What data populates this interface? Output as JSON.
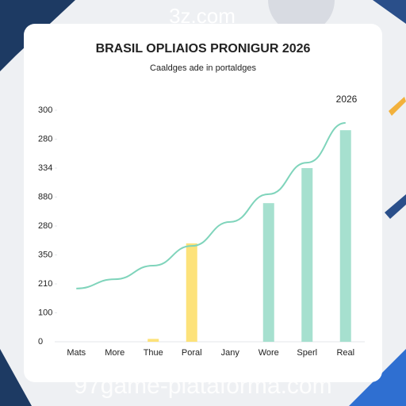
{
  "watermark_top": "3z.com",
  "watermark_bottom": "97game-plataforma.com",
  "chart_data": {
    "type": "bar",
    "title": "BRASIL OPLIAIOS PRONIGUR 2026",
    "subtitle": "Caaldges ade in portaldges",
    "annotation": "2026",
    "categories": [
      "Mats",
      "More",
      "Thue",
      "Poral",
      "Jany",
      "Wore",
      "Sperl",
      "Real"
    ],
    "series": [
      {
        "type": "bar",
        "values": [
          0,
          0,
          10,
          340,
          0,
          479,
          600,
          731
        ],
        "colors": [
          "#fde27a",
          "#fde27a",
          "#fde27a",
          "#fde27a",
          "#a6e0cf",
          "#a6e0cf",
          "#a6e0cf",
          "#a6e0cf"
        ]
      },
      {
        "type": "line",
        "values": [
          184,
          216,
          263,
          331,
          414,
          510,
          619,
          756
        ],
        "color": "#7fd4bb"
      }
    ],
    "ylim": [
      0,
      800
    ],
    "yticks": [
      0,
      100,
      {
        "value": 200,
        "label": "210"
      },
      {
        "value": 300,
        "label": "350"
      },
      {
        "value": 400,
        "label": "280"
      },
      {
        "value": 500,
        "label": "880"
      },
      {
        "value": 600,
        "label": "334"
      },
      {
        "value": 700,
        "label": "280"
      },
      {
        "value": 800,
        "label": "300"
      }
    ],
    "grid": false
  }
}
